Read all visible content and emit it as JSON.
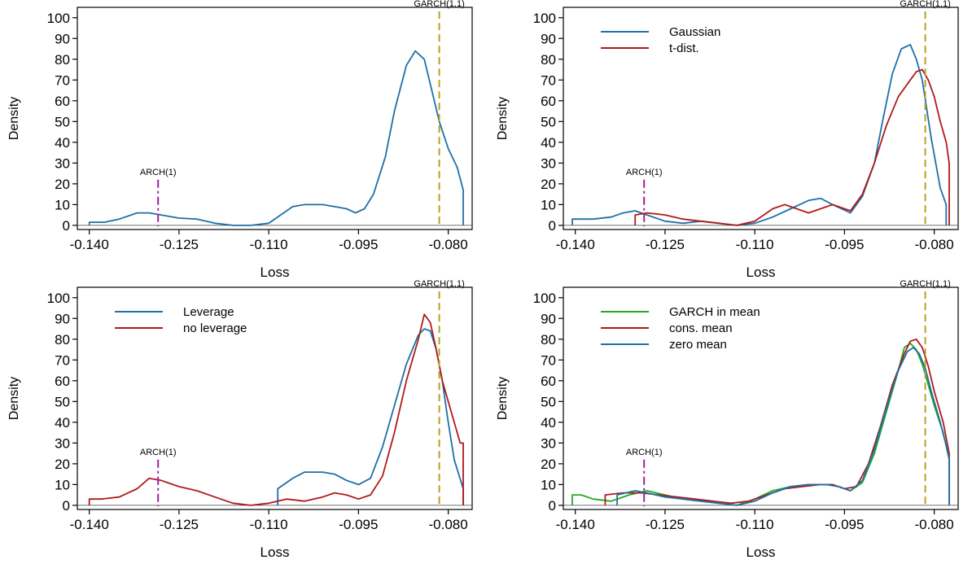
{
  "figure": {
    "panels": [
      {
        "xlabel": "Loss",
        "ylabel": "Density",
        "legend": [],
        "annotations": [
          {
            "label": "ARCH(1)",
            "x": -0.1285,
            "color": "#a020a0",
            "style": "dashdot"
          },
          {
            "label": "GARCH(1,1)",
            "x": -0.0815,
            "color": "#b8a020",
            "style": "dashed"
          }
        ]
      },
      {
        "xlabel": "Loss",
        "ylabel": "Density",
        "legend": [
          "Gaussian",
          "t-dist."
        ],
        "annotations": [
          {
            "label": "ARCH(1)",
            "x": -0.1285,
            "color": "#a020a0",
            "style": "dashdot"
          },
          {
            "label": "GARCH(1,1)",
            "x": -0.0815,
            "color": "#b8a020",
            "style": "dashed"
          }
        ]
      },
      {
        "xlabel": "Loss",
        "ylabel": "Density",
        "legend": [
          "Leverage",
          "no leverage"
        ],
        "annotations": [
          {
            "label": "ARCH(1)",
            "x": -0.1285,
            "color": "#a020a0",
            "style": "dashdot"
          },
          {
            "label": "GARCH(1,1)",
            "x": -0.0815,
            "color": "#b8a020",
            "style": "dashed"
          }
        ]
      },
      {
        "xlabel": "Loss",
        "ylabel": "Density",
        "legend": [
          "GARCH in mean",
          "cons. mean",
          "zero mean"
        ],
        "annotations": [
          {
            "label": "ARCH(1)",
            "x": -0.1285,
            "color": "#a020a0",
            "style": "dashdot"
          },
          {
            "label": "GARCH(1,1)",
            "x": -0.0815,
            "color": "#b8a020",
            "style": "dashed"
          }
        ]
      }
    ]
  },
  "chart_data": [
    {
      "type": "line",
      "xlabel": "Loss",
      "ylabel": "Density",
      "xlim": [
        -0.142,
        -0.076
      ],
      "ylim": [
        -2,
        105
      ],
      "xticks": [
        -0.14,
        -0.125,
        -0.11,
        -0.095,
        -0.08
      ],
      "xtick_labels": [
        "-0.140",
        "-0.125",
        "-0.110",
        "-0.095",
        "-0.080"
      ],
      "yticks": [
        0,
        10,
        20,
        30,
        40,
        50,
        60,
        70,
        80,
        90,
        100
      ],
      "ytick_labels": [
        "0",
        "10",
        "20",
        "30",
        "40",
        "50",
        "60",
        "70",
        "80",
        "90",
        "100"
      ],
      "grid": false,
      "legend_position": "none",
      "series": [
        {
          "color": "#1f6fa8",
          "x": [
            -0.14,
            -0.14,
            -0.1375,
            -0.135,
            -0.132,
            -0.13,
            -0.128,
            -0.125,
            -0.122,
            -0.119,
            -0.116,
            -0.113,
            -0.11,
            -0.108,
            -0.106,
            -0.104,
            -0.101,
            -0.099,
            -0.097,
            -0.0955,
            -0.094,
            -0.0925,
            -0.0905,
            -0.089,
            -0.087,
            -0.0855,
            -0.084,
            -0.083,
            -0.0815,
            -0.08,
            -0.0785,
            -0.0775,
            -0.0775
          ],
          "y": [
            0,
            1.5,
            1.5,
            3,
            6,
            6,
            5,
            3.5,
            3,
            1,
            0,
            0,
            1,
            5,
            9,
            10,
            10,
            9,
            8,
            6,
            8,
            15,
            33,
            55,
            77,
            84,
            80,
            68,
            50,
            37,
            28,
            17,
            0
          ]
        }
      ]
    },
    {
      "type": "line",
      "xlabel": "Loss",
      "ylabel": "Density",
      "xlim": [
        -0.142,
        -0.076
      ],
      "ylim": [
        -2,
        105
      ],
      "xticks": [
        -0.14,
        -0.125,
        -0.11,
        -0.095,
        -0.08
      ],
      "xtick_labels": [
        "-0.140",
        "-0.125",
        "-0.110",
        "-0.095",
        "-0.080"
      ],
      "yticks": [
        0,
        10,
        20,
        30,
        40,
        50,
        60,
        70,
        80,
        90,
        100
      ],
      "ytick_labels": [
        "0",
        "10",
        "20",
        "30",
        "40",
        "50",
        "60",
        "70",
        "80",
        "90",
        "100"
      ],
      "grid": false,
      "legend_position": "top-left",
      "series": [
        {
          "name": "Gaussian",
          "color": "#1f6fa8",
          "x": [
            -0.1405,
            -0.1405,
            -0.137,
            -0.134,
            -0.132,
            -0.13,
            -0.128,
            -0.125,
            -0.122,
            -0.119,
            -0.116,
            -0.113,
            -0.11,
            -0.107,
            -0.104,
            -0.101,
            -0.099,
            -0.097,
            -0.094,
            -0.092,
            -0.09,
            -0.0885,
            -0.087,
            -0.0855,
            -0.084,
            -0.083,
            -0.082,
            -0.0805,
            -0.079,
            -0.078,
            -0.078
          ],
          "y": [
            0,
            3,
            3,
            4,
            6,
            7,
            5,
            2,
            1,
            2,
            1,
            0,
            1,
            4,
            8,
            12,
            13,
            10,
            6,
            14,
            30,
            52,
            73,
            85,
            87,
            80,
            70,
            42,
            18,
            10,
            0
          ]
        },
        {
          "name": "t-dist.",
          "color": "#b01a1a",
          "x": [
            -0.13,
            -0.13,
            -0.128,
            -0.125,
            -0.122,
            -0.119,
            -0.116,
            -0.113,
            -0.11,
            -0.107,
            -0.105,
            -0.103,
            -0.101,
            -0.099,
            -0.097,
            -0.094,
            -0.092,
            -0.09,
            -0.088,
            -0.086,
            -0.084,
            -0.083,
            -0.082,
            -0.081,
            -0.08,
            -0.079,
            -0.078,
            -0.0775,
            -0.0775
          ],
          "y": [
            0,
            5,
            6,
            5,
            3,
            2,
            1,
            0,
            2,
            8,
            10,
            8,
            6,
            8,
            10,
            7,
            15,
            30,
            48,
            62,
            70,
            74,
            75,
            70,
            62,
            50,
            40,
            30,
            0
          ]
        }
      ]
    },
    {
      "type": "line",
      "xlabel": "Loss",
      "ylabel": "Density",
      "xlim": [
        -0.142,
        -0.076
      ],
      "ylim": [
        -2,
        105
      ],
      "xticks": [
        -0.14,
        -0.125,
        -0.11,
        -0.095,
        -0.08
      ],
      "xtick_labels": [
        "-0.140",
        "-0.125",
        "-0.110",
        "-0.095",
        "-0.080"
      ],
      "yticks": [
        0,
        10,
        20,
        30,
        40,
        50,
        60,
        70,
        80,
        90,
        100
      ],
      "ytick_labels": [
        "0",
        "10",
        "20",
        "30",
        "40",
        "50",
        "60",
        "70",
        "80",
        "90",
        "100"
      ],
      "grid": false,
      "legend_position": "top-left",
      "series": [
        {
          "name": "Leverage",
          "color": "#1f6fa8",
          "x": [
            -0.1085,
            -0.1085,
            -0.106,
            -0.104,
            -0.101,
            -0.099,
            -0.097,
            -0.095,
            -0.093,
            -0.091,
            -0.089,
            -0.087,
            -0.085,
            -0.084,
            -0.083,
            -0.082,
            -0.081,
            -0.08,
            -0.079,
            -0.0775,
            -0.0775
          ],
          "y": [
            0,
            8,
            13,
            16,
            16,
            15,
            12,
            10,
            13,
            28,
            48,
            68,
            82,
            85,
            84,
            75,
            60,
            40,
            22,
            8,
            0
          ]
        },
        {
          "name": "no leverage",
          "color": "#b01a1a",
          "x": [
            -0.14,
            -0.14,
            -0.138,
            -0.135,
            -0.132,
            -0.13,
            -0.128,
            -0.125,
            -0.122,
            -0.119,
            -0.116,
            -0.113,
            -0.11,
            -0.107,
            -0.104,
            -0.101,
            -0.099,
            -0.097,
            -0.095,
            -0.093,
            -0.091,
            -0.089,
            -0.087,
            -0.085,
            -0.084,
            -0.083,
            -0.082,
            -0.081,
            -0.0795,
            -0.078,
            -0.0775,
            -0.0775
          ],
          "y": [
            0,
            3,
            3,
            4,
            8,
            13,
            12,
            9,
            7,
            4,
            1,
            0,
            1,
            3,
            2,
            4,
            6,
            5,
            3,
            5,
            14,
            35,
            60,
            80,
            92,
            88,
            75,
            60,
            45,
            30,
            30,
            0
          ]
        }
      ]
    },
    {
      "type": "line",
      "xlabel": "Loss",
      "ylabel": "Density",
      "xlim": [
        -0.142,
        -0.076
      ],
      "ylim": [
        -2,
        105
      ],
      "xticks": [
        -0.14,
        -0.125,
        -0.11,
        -0.095,
        -0.08
      ],
      "xtick_labels": [
        "-0.140",
        "-0.125",
        "-0.110",
        "-0.095",
        "-0.080"
      ],
      "yticks": [
        0,
        10,
        20,
        30,
        40,
        50,
        60,
        70,
        80,
        90,
        100
      ],
      "ytick_labels": [
        "0",
        "10",
        "20",
        "30",
        "40",
        "50",
        "60",
        "70",
        "80",
        "90",
        "100"
      ],
      "grid": false,
      "legend_position": "top-left",
      "series": [
        {
          "name": "GARCH in mean",
          "color": "#22aa22",
          "x": [
            -0.1405,
            -0.1405,
            -0.139,
            -0.137,
            -0.134,
            -0.131,
            -0.128,
            -0.125,
            -0.122,
            -0.119,
            -0.116,
            -0.113,
            -0.11,
            -0.107,
            -0.104,
            -0.101,
            -0.098,
            -0.096,
            -0.094,
            -0.092,
            -0.09,
            -0.088,
            -0.086,
            -0.085,
            -0.084,
            -0.083,
            -0.082,
            -0.081,
            -0.08,
            -0.0785,
            -0.0775,
            -0.0775
          ],
          "y": [
            0,
            5,
            5,
            3,
            2,
            5,
            7,
            5,
            3,
            2,
            1,
            0,
            3,
            7,
            9,
            10,
            10,
            9,
            7,
            11,
            25,
            45,
            65,
            76,
            78,
            75,
            68,
            58,
            48,
            35,
            22,
            0
          ]
        },
        {
          "name": "cons. mean",
          "color": "#b01a1a",
          "x": [
            -0.135,
            -0.135,
            -0.132,
            -0.129,
            -0.126,
            -0.123,
            -0.12,
            -0.117,
            -0.114,
            -0.111,
            -0.108,
            -0.105,
            -0.102,
            -0.099,
            -0.097,
            -0.095,
            -0.093,
            -0.091,
            -0.089,
            -0.087,
            -0.085,
            -0.084,
            -0.083,
            -0.082,
            -0.081,
            -0.08,
            -0.0785,
            -0.0775,
            -0.0775
          ],
          "y": [
            0,
            5,
            6,
            6,
            5,
            4,
            3,
            2,
            1,
            2,
            5,
            8,
            9,
            10,
            10,
            8,
            9,
            20,
            38,
            58,
            73,
            79,
            80,
            76,
            67,
            55,
            40,
            25,
            0
          ]
        },
        {
          "name": "zero mean",
          "color": "#1f6fa8",
          "x": [
            -0.133,
            -0.133,
            -0.13,
            -0.128,
            -0.125,
            -0.122,
            -0.119,
            -0.116,
            -0.113,
            -0.11,
            -0.107,
            -0.104,
            -0.101,
            -0.098,
            -0.096,
            -0.094,
            -0.092,
            -0.09,
            -0.088,
            -0.086,
            -0.0845,
            -0.0835,
            -0.0825,
            -0.0815,
            -0.0805,
            -0.079,
            -0.0775,
            -0.0775
          ],
          "y": [
            0,
            5,
            7,
            6,
            4,
            3,
            2,
            1,
            0,
            2,
            6,
            9,
            10,
            10,
            9,
            7,
            12,
            27,
            47,
            65,
            74,
            76,
            73,
            66,
            55,
            40,
            23,
            0
          ]
        }
      ]
    }
  ]
}
